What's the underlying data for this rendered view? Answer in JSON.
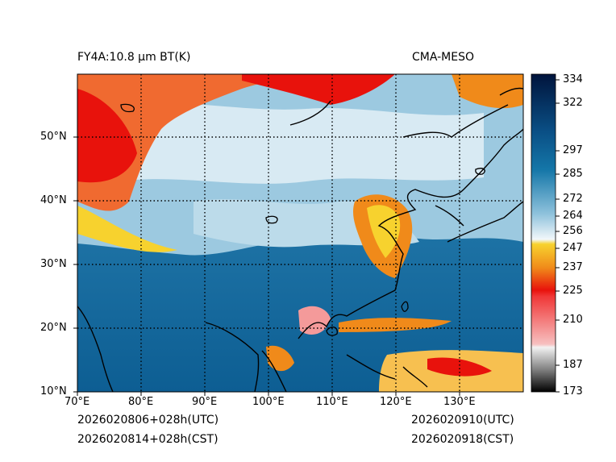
{
  "header": {
    "product": "FY4A:10.8 µm BT(K)",
    "source": "CMA-MESO"
  },
  "footer": {
    "init_utc": "2026020806+028h(UTC)",
    "init_cst": "2026020814+028h(CST)",
    "valid_utc": "2026020910(UTC)",
    "valid_cst": "2026020918(CST)"
  },
  "map": {
    "lon_labels": [
      "70°E",
      "80°E",
      "90°E",
      "100°E",
      "110°E",
      "120°E",
      "130°E"
    ],
    "lat_labels": [
      "50°N",
      "40°N",
      "30°N",
      "20°N",
      "10°N"
    ],
    "extent": {
      "lon_min": 70,
      "lon_max": 140,
      "lat_min": 10,
      "lat_max": 60
    }
  },
  "colorbar": {
    "ticks": [
      "334",
      "322",
      "297",
      "285",
      "272",
      "264",
      "256",
      "247",
      "237",
      "225",
      "210",
      "187",
      "173"
    ],
    "colors": {
      "top": "#00143c",
      "deep_blue": "#0a4f85",
      "mid_blue": "#1476a8",
      "light_blue": "#8fc2dc",
      "near_white": "#f2f7fa",
      "yellow": "#f7d22e",
      "orange": "#f08a1a",
      "red": "#e8120c",
      "pink": "#f7c0c0",
      "gray": "#808080",
      "black": "#000000"
    }
  }
}
